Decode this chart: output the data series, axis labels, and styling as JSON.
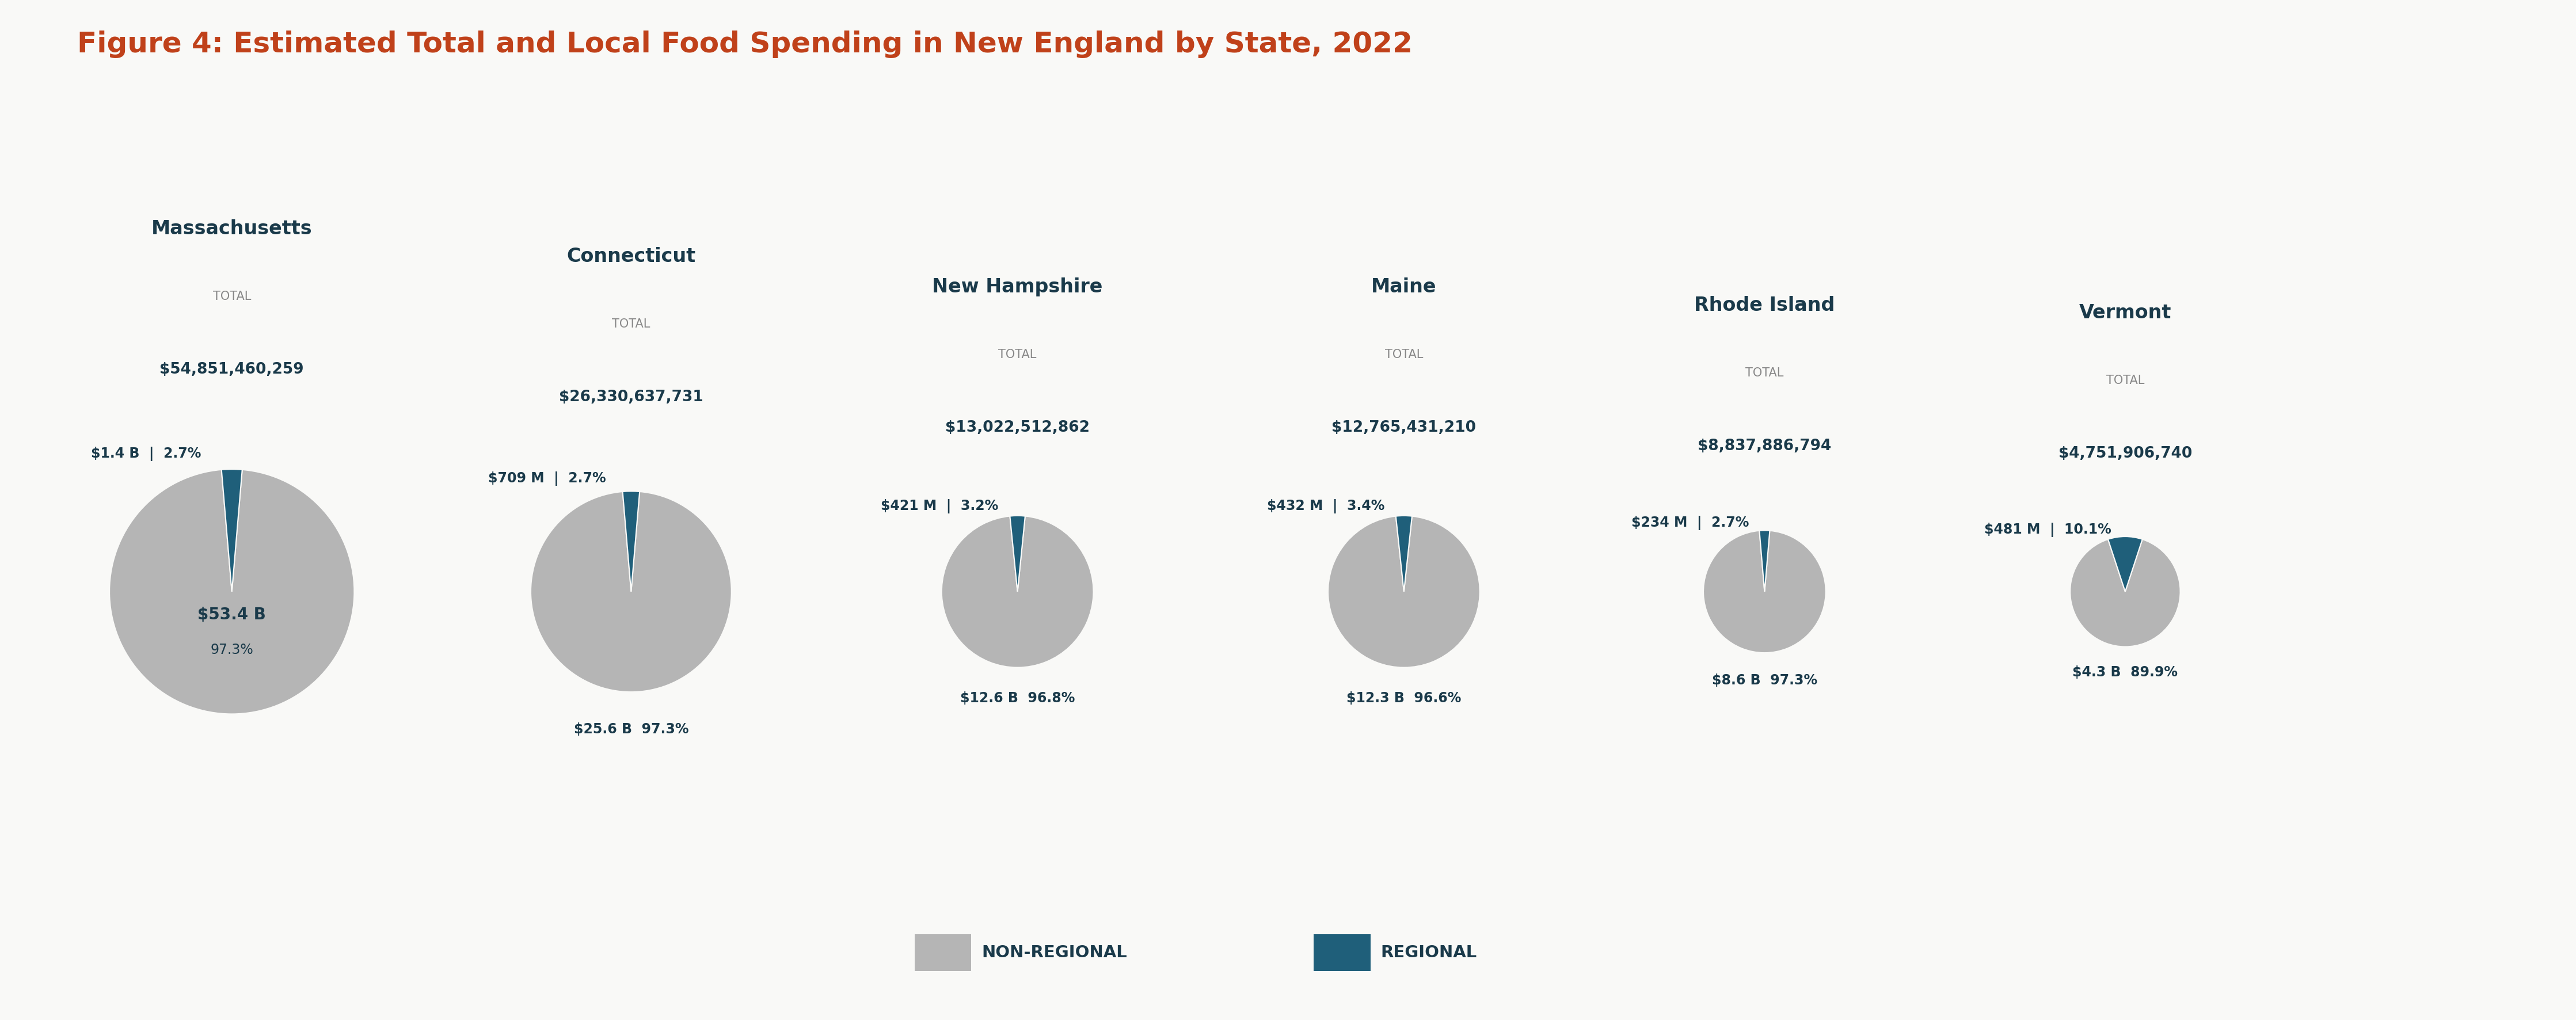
{
  "title": "Figure 4: Estimated Total and Local Food Spending in New England by State, 2022",
  "title_color": "#c0411a",
  "title_fontsize": 36,
  "states": [
    "Massachusetts",
    "Connecticut",
    "New Hampshire",
    "Maine",
    "Rhode Island",
    "Vermont"
  ],
  "totals": [
    "$54,851,460,259",
    "$26,330,637,731",
    "$13,022,512,862",
    "$12,765,431,210",
    "$8,837,886,794",
    "$4,751,906,740"
  ],
  "regional_label": [
    "$1.4 B",
    "$709 M",
    "$421 M",
    "$432 M",
    "$234 M",
    "$481 M"
  ],
  "regional_pct": [
    "2.7%",
    "2.7%",
    "3.2%",
    "3.4%",
    "2.7%",
    "10.1%"
  ],
  "nonregional_label": [
    "$53.4 B",
    "$25.6 B",
    "$12.6 B",
    "$12.3 B",
    "$8.6 B",
    "$4.3 B"
  ],
  "nonregional_pct": [
    "97.3%",
    "97.3%",
    "96.8%",
    "96.6%",
    "97.3%",
    "89.9%"
  ],
  "regional_values": [
    2.7,
    2.7,
    3.2,
    3.4,
    2.7,
    10.1
  ],
  "nonregional_values": [
    97.3,
    97.3,
    96.8,
    96.6,
    97.3,
    89.9
  ],
  "pie_sizes": [
    1.0,
    0.82,
    0.62,
    0.62,
    0.5,
    0.45
  ],
  "color_nonregional": "#b5b5b5",
  "color_regional": "#1f5f7a",
  "background_color": "#f9f9f7",
  "state_name_color": "#1a3a4a",
  "total_label_color": "#888888",
  "legend_nonregional": "NON-REGIONAL",
  "legend_regional": "REGIONAL"
}
